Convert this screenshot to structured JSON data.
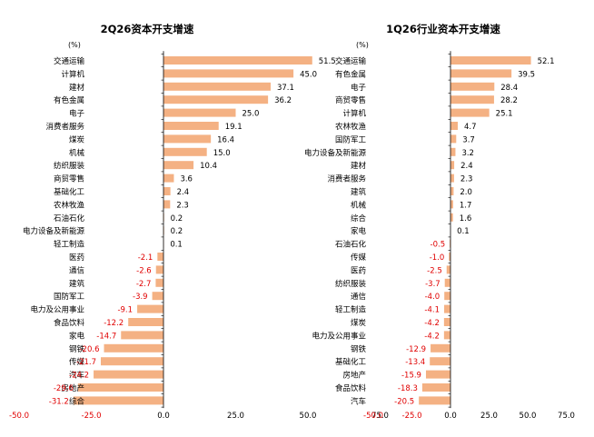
{
  "colors": {
    "bar": "#F4B183",
    "positive_label": "#000000",
    "negative_label": "#E00000",
    "axis": "#000000"
  },
  "chart_data": [
    {
      "type": "bar",
      "orientation": "horizontal",
      "title": "2Q26资本开支增速",
      "unit_label": "(%)",
      "xlim": [
        -50,
        75
      ],
      "xticks": [
        "-50.0",
        "-25.0",
        "0.0",
        "25.0",
        "50.0",
        "75.0"
      ],
      "xtick_values": [
        -50,
        -25,
        0,
        25,
        50,
        75
      ],
      "grid": false,
      "categories": [
        "交通运输",
        "计算机",
        "建材",
        "有色金属",
        "电子",
        "消费者服务",
        "煤炭",
        "机械",
        "纺织服装",
        "商贸零售",
        "基础化工",
        "农林牧渔",
        "石油石化",
        "电力设备及新能源",
        "轻工制造",
        "医药",
        "通信",
        "建筑",
        "国防军工",
        "电力及公用事业",
        "食品饮料",
        "家电",
        "钢铁",
        "传媒",
        "汽车",
        "房地产",
        "综合"
      ],
      "values": [
        51.5,
        45.0,
        37.1,
        36.2,
        25.0,
        19.1,
        16.4,
        15.0,
        10.4,
        3.6,
        2.4,
        2.3,
        0.2,
        0.2,
        0.1,
        -2.1,
        -2.6,
        -2.7,
        -3.9,
        -9.1,
        -12.2,
        -14.7,
        -20.6,
        -21.7,
        -24.2,
        -29.6,
        -31.2
      ],
      "value_labels": [
        "51.5",
        "45.0",
        "37.1",
        "36.2",
        "25.0",
        "19.1",
        "16.4",
        "15.0",
        "10.4",
        "3.6",
        "2.4",
        "2.3",
        "0.2",
        "0.2",
        "0.1",
        "-2.1",
        "-2.6",
        "-2.7",
        "-3.9",
        "-9.1",
        "-12.2",
        "-14.7",
        "-20.6",
        "-21.7",
        "-24.2",
        "-29.6",
        "-31.2"
      ]
    },
    {
      "type": "bar",
      "orientation": "horizontal",
      "title": "1Q26行业资本开支增速",
      "unit_label": "(%)",
      "xlim": [
        -50,
        75
      ],
      "xticks": [
        "-50.0",
        "-25.0",
        "0.0",
        "25.0",
        "50.0",
        "75.0"
      ],
      "xtick_values": [
        -50,
        -25,
        0,
        25,
        50,
        75
      ],
      "grid": false,
      "categories": [
        "交通运输",
        "有色金属",
        "电子",
        "商贸零售",
        "计算机",
        "农林牧渔",
        "国防军工",
        "电力设备及新能源",
        "建材",
        "消费者服务",
        "建筑",
        "机械",
        "综合",
        "家电",
        "石油石化",
        "传媒",
        "医药",
        "纺织服装",
        "通信",
        "轻工制造",
        "煤炭",
        "电力及公用事业",
        "钢铁",
        "基础化工",
        "房地产",
        "食品饮料",
        "汽车"
      ],
      "values": [
        52.1,
        39.5,
        28.4,
        28.2,
        25.1,
        4.7,
        3.7,
        3.2,
        2.4,
        2.3,
        2.0,
        1.7,
        1.6,
        0.1,
        -0.5,
        -1.0,
        -2.5,
        -3.7,
        -4.0,
        -4.1,
        -4.2,
        -4.2,
        -12.9,
        -13.4,
        -15.9,
        -18.3,
        -20.5
      ],
      "value_labels": [
        "52.1",
        "39.5",
        "28.4",
        "28.2",
        "25.1",
        "4.7",
        "3.7",
        "3.2",
        "2.4",
        "2.3",
        "2.0",
        "1.7",
        "1.6",
        "0.1",
        "-0.5",
        "-1.0",
        "-2.5",
        "-3.7",
        "-4.0",
        "-4.1",
        "-4.2",
        "-4.2",
        "-12.9",
        "-13.4",
        "-15.9",
        "-18.3",
        "-20.5"
      ]
    }
  ]
}
